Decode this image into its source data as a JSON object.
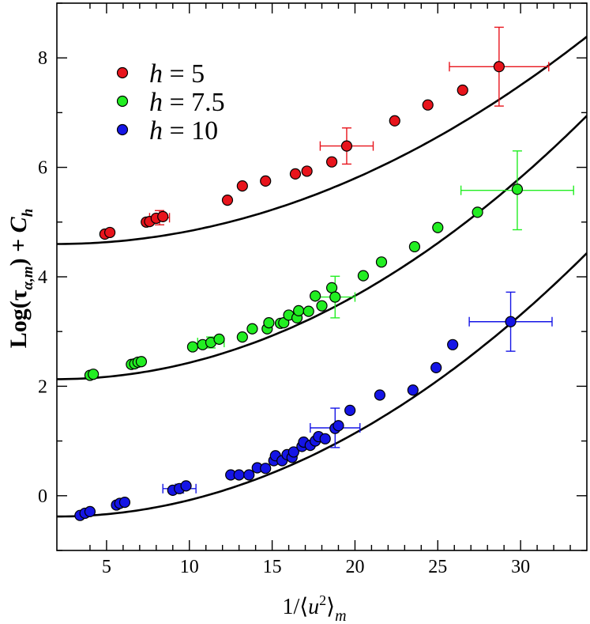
{
  "chart_data": {
    "type": "scatter",
    "title": "",
    "xlabel": "1/⟨u²⟩_m",
    "ylabel": "Log(τ_α,m) + C_h",
    "xlim": [
      2,
      34
    ],
    "ylim": [
      -1,
      9
    ],
    "x_ticks": [
      5,
      10,
      15,
      20,
      25,
      30
    ],
    "y_ticks": [
      0,
      2,
      4,
      6,
      8
    ],
    "legend_position": "top-left",
    "series": [
      {
        "name": "h = 5",
        "legend_prefix": "h",
        "legend_value": "= 5",
        "color": "#e8141c",
        "points": [
          [
            4.9,
            4.78
          ],
          [
            5.2,
            4.81
          ],
          [
            7.4,
            5.0
          ],
          [
            7.6,
            5.01
          ],
          [
            8.0,
            5.07
          ],
          [
            8.4,
            5.1
          ],
          [
            12.3,
            5.4
          ],
          [
            13.2,
            5.66
          ],
          [
            14.6,
            5.75
          ],
          [
            16.4,
            5.88
          ],
          [
            17.1,
            5.93
          ],
          [
            18.6,
            6.1
          ],
          [
            19.5,
            6.39
          ],
          [
            22.4,
            6.85
          ],
          [
            24.4,
            7.14
          ],
          [
            26.5,
            7.41
          ],
          [
            28.7,
            7.84
          ]
        ],
        "errorbars": [
          {
            "x": 8.2,
            "y": 5.08,
            "xerr": 0.6,
            "yerr": 0.13
          },
          {
            "x": 19.5,
            "y": 6.39,
            "xerr": 1.6,
            "yerr": 0.33
          },
          {
            "x": 28.7,
            "y": 7.84,
            "xerr": 3.0,
            "yerr": 0.72
          }
        ],
        "fit": {
          "a": 4.6,
          "b": 0.0,
          "c": 0.0037,
          "x0": 2
        }
      },
      {
        "name": "h = 7.5",
        "legend_prefix": "h",
        "legend_value": "= 7.5",
        "color": "#22ee22",
        "points": [
          [
            4.0,
            2.2
          ],
          [
            4.2,
            2.22
          ],
          [
            6.5,
            2.4
          ],
          [
            6.7,
            2.41
          ],
          [
            6.9,
            2.44
          ],
          [
            7.1,
            2.45
          ],
          [
            10.2,
            2.72
          ],
          [
            10.8,
            2.76
          ],
          [
            11.3,
            2.8
          ],
          [
            11.8,
            2.86
          ],
          [
            13.2,
            2.9
          ],
          [
            13.8,
            3.05
          ],
          [
            14.7,
            3.05
          ],
          [
            14.8,
            3.16
          ],
          [
            15.5,
            3.15
          ],
          [
            15.7,
            3.16
          ],
          [
            16.0,
            3.3
          ],
          [
            16.5,
            3.25
          ],
          [
            16.6,
            3.38
          ],
          [
            17.2,
            3.37
          ],
          [
            17.6,
            3.65
          ],
          [
            18.0,
            3.47
          ],
          [
            18.6,
            3.8
          ],
          [
            18.8,
            3.63
          ],
          [
            20.5,
            4.02
          ],
          [
            21.6,
            4.27
          ],
          [
            23.6,
            4.55
          ],
          [
            25.0,
            4.9
          ],
          [
            27.4,
            5.18
          ],
          [
            29.8,
            5.6
          ]
        ],
        "errorbars": [
          {
            "x": 11.3,
            "y": 2.8,
            "xerr": 0.8,
            "yerr": 0.1
          },
          {
            "x": 18.8,
            "y": 3.63,
            "xerr": 1.2,
            "yerr": 0.38
          },
          {
            "x": 29.8,
            "y": 5.58,
            "xerr": 3.4,
            "yerr": 0.72
          }
        ],
        "fit": {
          "a": 2.13,
          "b": 0.0,
          "c": 0.0047,
          "x0": 2
        }
      },
      {
        "name": "h = 10",
        "legend_prefix": "h",
        "legend_value": "= 10",
        "color": "#1515e6",
        "points": [
          [
            3.4,
            -0.36
          ],
          [
            3.7,
            -0.32
          ],
          [
            4.0,
            -0.29
          ],
          [
            5.6,
            -0.17
          ],
          [
            5.8,
            -0.14
          ],
          [
            6.1,
            -0.12
          ],
          [
            9.0,
            0.1
          ],
          [
            9.4,
            0.13
          ],
          [
            9.8,
            0.18
          ],
          [
            12.5,
            0.38
          ],
          [
            13.0,
            0.38
          ],
          [
            13.6,
            0.38
          ],
          [
            14.1,
            0.51
          ],
          [
            14.6,
            0.5
          ],
          [
            15.1,
            0.64
          ],
          [
            15.2,
            0.73
          ],
          [
            15.6,
            0.64
          ],
          [
            15.9,
            0.75
          ],
          [
            16.2,
            0.7
          ],
          [
            16.3,
            0.8
          ],
          [
            16.8,
            0.9
          ],
          [
            16.9,
            0.98
          ],
          [
            17.3,
            0.92
          ],
          [
            17.6,
            1.0
          ],
          [
            17.8,
            1.08
          ],
          [
            18.2,
            1.04
          ],
          [
            18.8,
            1.23
          ],
          [
            19.0,
            1.28
          ],
          [
            19.7,
            1.56
          ],
          [
            21.5,
            1.84
          ],
          [
            23.5,
            1.93
          ],
          [
            24.9,
            2.34
          ],
          [
            25.9,
            2.76
          ],
          [
            29.4,
            3.18
          ]
        ],
        "errorbars": [
          {
            "x": 9.4,
            "y": 0.13,
            "xerr": 1.0,
            "yerr": 0.08
          },
          {
            "x": 18.8,
            "y": 1.24,
            "xerr": 1.5,
            "yerr": 0.36
          },
          {
            "x": 29.4,
            "y": 3.18,
            "xerr": 2.5,
            "yerr": 0.54
          }
        ],
        "fit": {
          "a": -0.38,
          "b": 0.0,
          "c": 0.0047,
          "x0": 2
        }
      }
    ]
  }
}
